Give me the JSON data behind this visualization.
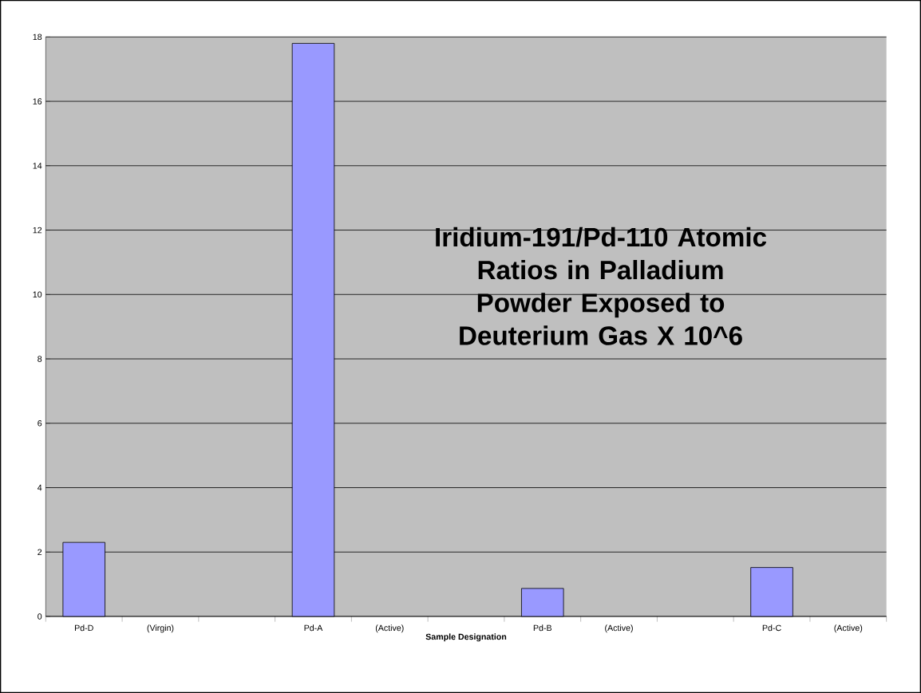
{
  "chart_data": {
    "type": "bar",
    "title": "Iridium-191/Pd-110 Atomic Ratios in Palladium Powder Exposed to Deuterium Gas X 10^6",
    "xlabel": "Sample Designation",
    "categories": [
      "Pd-D",
      "(Virgin)",
      null,
      "Pd-A",
      "(Active)",
      null,
      "Pd-B",
      "(Active)",
      null,
      "Pd-C",
      "(Active)"
    ],
    "values": [
      2.3,
      null,
      null,
      17.8,
      null,
      null,
      0.87,
      null,
      null,
      1.52,
      null
    ],
    "color": "#9999ff",
    "ylim": [
      0,
      18
    ],
    "yticks": [
      0,
      2,
      4,
      6,
      8,
      10,
      12,
      14,
      16,
      18
    ],
    "grid": "y"
  }
}
